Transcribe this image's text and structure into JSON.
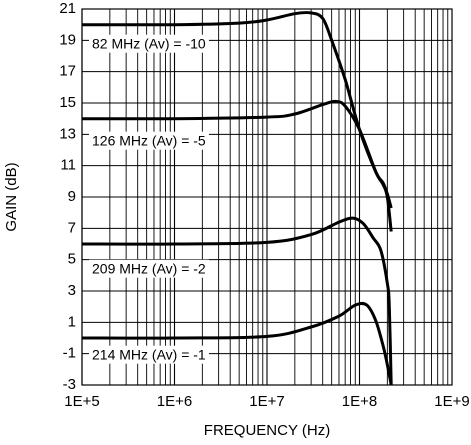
{
  "chart_data": {
    "type": "line",
    "xlabel": "FREQUENCY (Hz)",
    "ylabel": "GAIN (dB)",
    "xscale": "log",
    "xlim": [
      100000,
      1000000000
    ],
    "ylim": [
      -3,
      21
    ],
    "grid": true,
    "xticks": [
      "1E+5",
      "1E+6",
      "1E+7",
      "1E+8",
      "1E+9"
    ],
    "yticks": [
      "21",
      "19",
      "17",
      "15",
      "13",
      "11",
      "9",
      "7",
      "5",
      "3",
      "1",
      "-1",
      "-3"
    ],
    "annotations": [
      "82 MHz (Av) = -10",
      "126 MHz (Av) = -5",
      "209 MHz (Av) = -2",
      "214 MHz (Av) = -1"
    ],
    "series": [
      {
        "points": [
          [
            100000,
            20
          ],
          [
            1000000,
            20
          ],
          [
            5000000,
            20.1
          ],
          [
            10000000,
            20.3
          ],
          [
            20000000,
            20.7
          ],
          [
            30000000,
            20.75
          ],
          [
            40000000,
            20.4
          ],
          [
            50000000,
            19.0
          ],
          [
            70000000,
            16.5
          ],
          [
            100000000,
            13.3
          ],
          [
            150000000,
            10.6
          ],
          [
            180000000,
            9.9
          ],
          [
            200000000,
            9.2
          ],
          [
            220000000,
            8.3
          ]
        ]
      },
      {
        "points": [
          [
            100000,
            14
          ],
          [
            1000000,
            14
          ],
          [
            10000000,
            14.1
          ],
          [
            20000000,
            14.3
          ],
          [
            40000000,
            14.9
          ],
          [
            55000000,
            15.1
          ],
          [
            70000000,
            14.8
          ],
          [
            100000000,
            13.3
          ],
          [
            150000000,
            10.6
          ],
          [
            180000000,
            9.8
          ],
          [
            200000000,
            9.0
          ],
          [
            220000000,
            6.8
          ]
        ]
      },
      {
        "points": [
          [
            100000,
            6
          ],
          [
            1000000,
            6
          ],
          [
            10000000,
            6.1
          ],
          [
            30000000,
            6.6
          ],
          [
            60000000,
            7.4
          ],
          [
            85000000,
            7.65
          ],
          [
            110000000,
            7.3
          ],
          [
            140000000,
            6.4
          ],
          [
            170000000,
            5.6
          ],
          [
            200000000,
            3.5
          ],
          [
            210000000,
            2.0
          ],
          [
            220000000,
            -3
          ]
        ]
      },
      {
        "points": [
          [
            100000,
            0
          ],
          [
            1000000,
            0
          ],
          [
            10000000,
            0.1
          ],
          [
            30000000,
            0.7
          ],
          [
            60000000,
            1.4
          ],
          [
            90000000,
            2.1
          ],
          [
            120000000,
            2.1
          ],
          [
            150000000,
            1.1
          ],
          [
            180000000,
            -0.5
          ],
          [
            200000000,
            -1.7
          ],
          [
            220000000,
            -3
          ]
        ]
      }
    ]
  }
}
